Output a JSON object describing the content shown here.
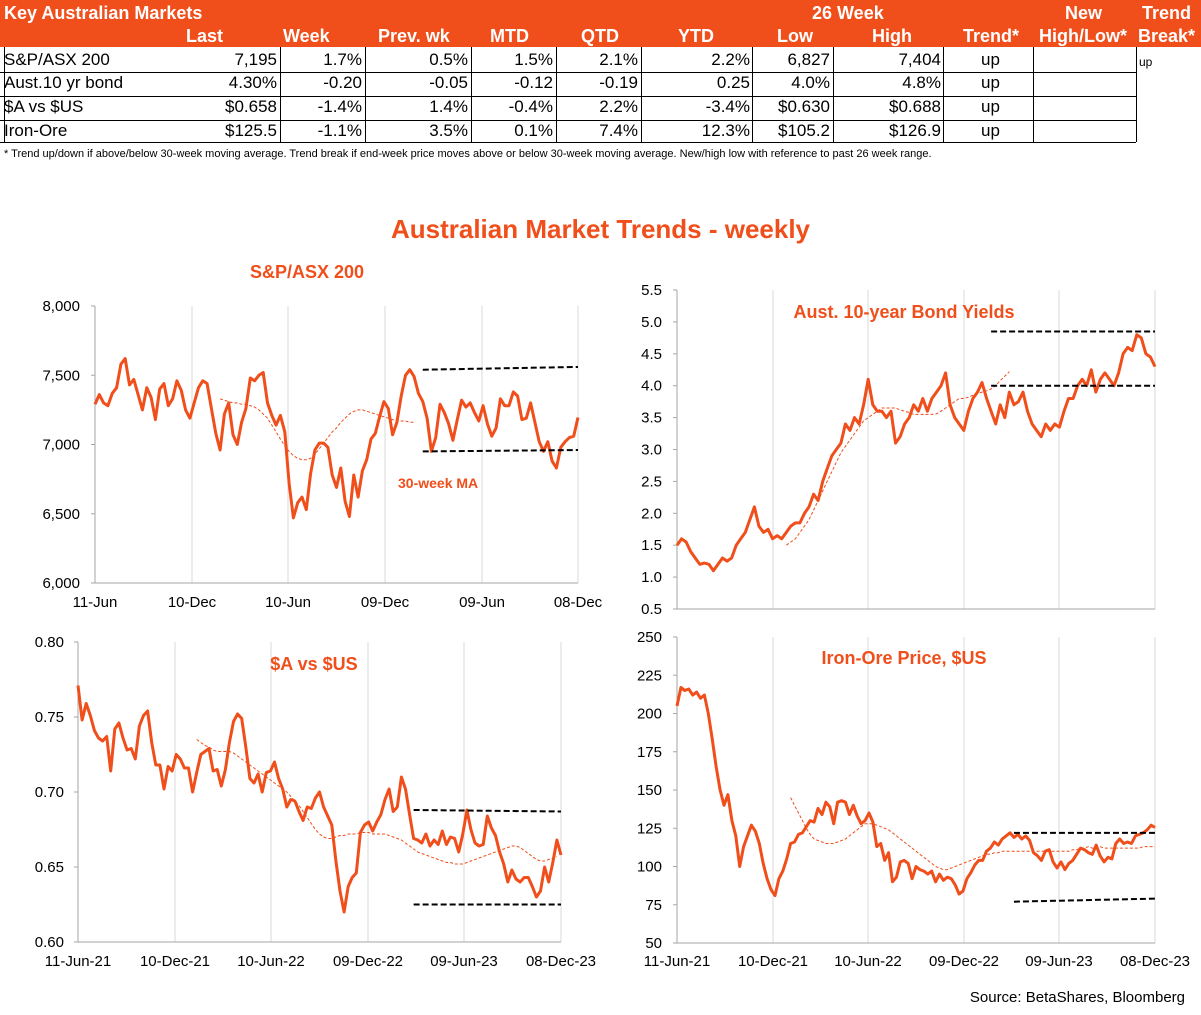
{
  "table": {
    "title": "Key Australian Markets",
    "headers": {
      "last": "Last",
      "week": "Week",
      "prev": "Prev. wk",
      "mtd": "MTD",
      "qtd": "QTD",
      "ytd": "YTD",
      "group26": "26 Week",
      "low": "Low",
      "high": "High",
      "trend": "Trend*",
      "newhl_1": "New",
      "newhl_2": "High/Low*",
      "tb_1": "Trend",
      "tb_2": "Break*"
    },
    "rows": [
      {
        "name": "S&P/ASX 200",
        "last": "7,195",
        "week": "1.7%",
        "prev": "0.5%",
        "mtd": "1.5%",
        "qtd": "2.1%",
        "ytd": "2.2%",
        "low": "6,827",
        "high": "7,404",
        "trend": "up",
        "newhl": "",
        "tb": "up"
      },
      {
        "name": "Aust.10 yr bond",
        "last": "4.30%",
        "week": "-0.20",
        "prev": "-0.05",
        "mtd": "-0.12",
        "qtd": "-0.19",
        "ytd": "0.25",
        "low": "4.0%",
        "high": "4.8%",
        "trend": "up",
        "newhl": "",
        "tb": ""
      },
      {
        "name": "$A vs $US",
        "last": "$0.658",
        "week": "-1.4%",
        "prev": "1.4%",
        "mtd": "-0.4%",
        "qtd": "2.2%",
        "ytd": "-3.4%",
        "low": "$0.630",
        "high": "$0.688",
        "trend": "up",
        "newhl": "",
        "tb": ""
      },
      {
        "name": "Iron-Ore",
        "last": "$125.5",
        "week": "-1.1%",
        "prev": "3.5%",
        "mtd": "0.1%",
        "qtd": "7.4%",
        "ytd": "12.3%",
        "low": "$105.2",
        "high": "$126.9",
        "trend": "up",
        "newhl": "",
        "tb": ""
      }
    ],
    "footnote": "*  Trend up/down if above/below 30-week moving average. Trend break if end-week price moves above or below 30-week moving average.  New/high low with reference to past 26 week range."
  },
  "main_title": "Australian Market Trends - weekly",
  "source": "Source: BetaShares, Bloomberg",
  "colors": {
    "accent": "#F04E1A",
    "line": "#F04E1A",
    "band": "#000000",
    "grid": "#d9d9d9"
  },
  "chart_data": [
    {
      "id": "asx",
      "type": "line",
      "title": "S&P/ASX 200",
      "ylim": [
        6000,
        8000
      ],
      "yticks": [
        "6,000",
        "6,500",
        "7,000",
        "7,500",
        "8,000"
      ],
      "ytick_values": [
        6000,
        6500,
        7000,
        7500,
        8000
      ],
      "xticks": [
        "11-Jun",
        "10-Dec",
        "10-Jun",
        "09-Dec",
        "09-Jun",
        "08-Dec"
      ],
      "annotation": "30-week MA",
      "series": [
        {
          "style": "price",
          "values": [
            7290,
            7360,
            7300,
            7280,
            7370,
            7410,
            7580,
            7620,
            7430,
            7470,
            7360,
            7250,
            7410,
            7340,
            7180,
            7400,
            7440,
            7280,
            7330,
            7460,
            7390,
            7250,
            7190,
            7300,
            7410,
            7460,
            7440,
            7260,
            7080,
            6960,
            7220,
            7300,
            7070,
            7000,
            7160,
            7260,
            7480,
            7460,
            7500,
            7520,
            7300,
            7210,
            7140,
            7210,
            7090,
            6720,
            6470,
            6580,
            6620,
            6530,
            6790,
            6960,
            7010,
            7010,
            6980,
            6780,
            6690,
            6830,
            6590,
            6480,
            6780,
            6620,
            6810,
            6890,
            7040,
            7080,
            7200,
            7310,
            7260,
            7070,
            7160,
            7350,
            7500,
            7540,
            7490,
            7370,
            7310,
            7190,
            6950,
            7050,
            7290,
            7230,
            7150,
            7030,
            7180,
            7320,
            7270,
            7300,
            7230,
            7170,
            7280,
            7150,
            7060,
            7120,
            7330,
            7280,
            7280,
            7380,
            7350,
            7180,
            7190,
            7300,
            7160,
            7020,
            6950,
            7020,
            6880,
            6830,
            6980,
            7020,
            7050,
            7060,
            7195
          ]
        },
        {
          "style": "ma",
          "start": 29,
          "values": [
            7330,
            7320,
            7310,
            7300,
            7300,
            7290,
            7290,
            7280,
            7270,
            7250,
            7220,
            7190,
            7140,
            7090,
            7040,
            6990,
            6950,
            6920,
            6900,
            6890,
            6890,
            6900,
            6930,
            6970,
            7010,
            7050,
            7090,
            7120,
            7160,
            7190,
            7220,
            7240,
            7250,
            7250,
            7240,
            7230,
            7220,
            7210,
            7200,
            7190,
            7180,
            7170,
            7170,
            7170,
            7160,
            7160
          ]
        }
      ],
      "bands": [
        [
          7540,
          7560
        ],
        [
          6950,
          6960
        ]
      ]
    },
    {
      "id": "bond",
      "type": "line",
      "title": "Aust. 10-year Bond Yields",
      "ylim": [
        0.5,
        5.5
      ],
      "yticks": [
        "0.5",
        "1.0",
        "1.5",
        "2.0",
        "2.5",
        "3.0",
        "3.5",
        "4.0",
        "4.5",
        "5.0",
        "5.5"
      ],
      "ytick_values": [
        0.5,
        1.0,
        1.5,
        2.0,
        2.5,
        3.0,
        3.5,
        4.0,
        4.5,
        5.0,
        5.5
      ],
      "xticks": [],
      "series": [
        {
          "style": "price",
          "values": [
            1.5,
            1.6,
            1.55,
            1.4,
            1.3,
            1.2,
            1.22,
            1.2,
            1.1,
            1.2,
            1.3,
            1.25,
            1.3,
            1.5,
            1.6,
            1.7,
            1.9,
            2.1,
            1.8,
            1.7,
            1.75,
            1.6,
            1.65,
            1.6,
            1.7,
            1.8,
            1.85,
            1.85,
            2.0,
            2.1,
            2.3,
            2.2,
            2.5,
            2.7,
            2.9,
            3.0,
            3.1,
            3.4,
            3.3,
            3.5,
            3.4,
            3.7,
            4.1,
            3.7,
            3.6,
            3.6,
            3.5,
            3.6,
            3.1,
            3.2,
            3.4,
            3.5,
            3.7,
            3.6,
            3.8,
            3.6,
            3.8,
            3.9,
            4.0,
            4.2,
            3.7,
            3.5,
            3.4,
            3.3,
            3.6,
            3.8,
            3.9,
            4.05,
            3.8,
            3.6,
            3.4,
            3.7,
            3.5,
            3.9,
            3.7,
            3.75,
            3.9,
            3.6,
            3.4,
            3.3,
            3.2,
            3.4,
            3.3,
            3.4,
            3.35,
            3.6,
            3.8,
            3.8,
            4.0,
            4.1,
            4.0,
            4.25,
            3.9,
            4.1,
            4.2,
            4.1,
            4.0,
            4.2,
            4.5,
            4.6,
            4.55,
            4.8,
            4.75,
            4.5,
            4.45,
            4.3
          ]
        },
        {
          "style": "ma",
          "start": 24,
          "values": [
            1.5,
            1.55,
            1.6,
            1.7,
            1.8,
            1.9,
            2.05,
            2.2,
            2.35,
            2.5,
            2.65,
            2.8,
            2.95,
            3.05,
            3.15,
            3.25,
            3.35,
            3.45,
            3.5,
            3.55,
            3.6,
            3.65,
            3.65,
            3.65,
            3.65,
            3.62,
            3.6,
            3.58,
            3.55,
            3.55,
            3.55,
            3.55,
            3.55,
            3.56,
            3.6,
            3.65,
            3.7,
            3.75,
            3.8,
            3.8,
            3.82,
            3.85,
            3.88,
            3.9,
            3.92,
            3.95,
            4.0,
            4.08,
            4.15,
            4.22
          ]
        }
      ],
      "bands": [
        [
          4.85,
          4.85
        ],
        [
          4.0,
          4.0
        ]
      ]
    },
    {
      "id": "aud",
      "type": "line",
      "title": "$A vs $US",
      "ylim": [
        0.6,
        0.8
      ],
      "yticks": [
        "0.60",
        "0.65",
        "0.70",
        "0.75",
        "0.80"
      ],
      "ytick_values": [
        0.6,
        0.65,
        0.7,
        0.75,
        0.8
      ],
      "xticks": [
        "11-Jun-21",
        "10-Dec-21",
        "10-Jun-22",
        "09-Dec-22",
        "09-Jun-23",
        "08-Dec-23"
      ],
      "series": [
        {
          "style": "price",
          "values": [
            0.771,
            0.748,
            0.759,
            0.751,
            0.741,
            0.736,
            0.734,
            0.737,
            0.714,
            0.742,
            0.746,
            0.736,
            0.728,
            0.729,
            0.722,
            0.744,
            0.751,
            0.754,
            0.733,
            0.718,
            0.718,
            0.702,
            0.717,
            0.714,
            0.725,
            0.722,
            0.716,
            0.716,
            0.7,
            0.713,
            0.725,
            0.727,
            0.729,
            0.714,
            0.715,
            0.704,
            0.715,
            0.733,
            0.747,
            0.752,
            0.749,
            0.73,
            0.709,
            0.706,
            0.712,
            0.7,
            0.713,
            0.714,
            0.72,
            0.709,
            0.702,
            0.69,
            0.695,
            0.694,
            0.687,
            0.681,
            0.69,
            0.689,
            0.696,
            0.7,
            0.69,
            0.684,
            0.678,
            0.654,
            0.634,
            0.62,
            0.637,
            0.643,
            0.646,
            0.673,
            0.678,
            0.68,
            0.674,
            0.68,
            0.685,
            0.695,
            0.702,
            0.687,
            0.69,
            0.71,
            0.702,
            0.685,
            0.669,
            0.668,
            0.666,
            0.672,
            0.664,
            0.668,
            0.665,
            0.674,
            0.665,
            0.67,
            0.669,
            0.66,
            0.672,
            0.688,
            0.675,
            0.666,
            0.664,
            0.665,
            0.684,
            0.676,
            0.671,
            0.66,
            0.652,
            0.64,
            0.648,
            0.642,
            0.64,
            0.643,
            0.643,
            0.637,
            0.63,
            0.634,
            0.65,
            0.64,
            0.653,
            0.668,
            0.658
          ]
        },
        {
          "style": "ma",
          "start": 29,
          "values": [
            0.735,
            0.733,
            0.731,
            0.73,
            0.728,
            0.727,
            0.727,
            0.727,
            0.727,
            0.726,
            0.724,
            0.722,
            0.72,
            0.718,
            0.716,
            0.714,
            0.712,
            0.71,
            0.708,
            0.706,
            0.704,
            0.702,
            0.7,
            0.697,
            0.694,
            0.691,
            0.687,
            0.683,
            0.679,
            0.675,
            0.672,
            0.67,
            0.669,
            0.669,
            0.67,
            0.671,
            0.671,
            0.672,
            0.672,
            0.672,
            0.673,
            0.673,
            0.673,
            0.672,
            0.672,
            0.672,
            0.672,
            0.671,
            0.67,
            0.669,
            0.668,
            0.666,
            0.664,
            0.662,
            0.66,
            0.659,
            0.658,
            0.657,
            0.656,
            0.655,
            0.654,
            0.653,
            0.653,
            0.652,
            0.652,
            0.652,
            0.653,
            0.654,
            0.655,
            0.656,
            0.657,
            0.658,
            0.659,
            0.66,
            0.661,
            0.662,
            0.663,
            0.664,
            0.664,
            0.663,
            0.661,
            0.659,
            0.657,
            0.655,
            0.654,
            0.654,
            0.655,
            0.656,
            0.657
          ]
        }
      ],
      "bands": [
        [
          0.688,
          0.687
        ],
        [
          0.625,
          0.625
        ]
      ]
    },
    {
      "id": "iron",
      "type": "line",
      "title": "Iron-Ore Price, $US",
      "ylim": [
        50,
        250
      ],
      "yticks": [
        "50",
        "75",
        "100",
        "125",
        "150",
        "175",
        "200",
        "225",
        "250"
      ],
      "ytick_values": [
        50,
        75,
        100,
        125,
        150,
        175,
        200,
        225,
        250
      ],
      "xticks": [
        "11-Jun-21",
        "10-Dec-21",
        "10-Jun-22",
        "09-Dec-22",
        "09-Jun-23",
        "08-Dec-23"
      ],
      "series": [
        {
          "style": "price",
          "values": [
            205,
            217,
            215,
            216,
            212,
            214,
            210,
            212,
            200,
            183,
            165,
            150,
            140,
            147,
            130,
            120,
            100,
            113,
            120,
            127,
            123,
            115,
            102,
            92,
            85,
            81,
            92,
            97,
            105,
            115,
            116,
            121,
            122,
            126,
            130,
            129,
            138,
            134,
            142,
            139,
            128,
            142,
            143,
            142,
            134,
            140,
            133,
            128,
            130,
            135,
            129,
            113,
            115,
            104,
            109,
            90,
            93,
            103,
            104,
            102,
            92,
            100,
            98,
            97,
            95,
            97,
            90,
            95,
            91,
            93,
            92,
            88,
            82,
            84,
            92,
            96,
            101,
            104,
            104,
            110,
            112,
            116,
            114,
            118,
            120,
            122,
            119,
            121,
            118,
            120,
            117,
            109,
            107,
            104,
            110,
            111,
            103,
            99,
            103,
            98,
            102,
            104,
            108,
            112,
            111,
            109,
            108,
            114,
            107,
            103,
            106,
            105,
            115,
            118,
            115,
            116,
            115,
            120,
            121,
            122,
            124,
            127,
            125.5
          ]
        },
        {
          "style": "ma",
          "start": 29,
          "values": [
            145,
            140,
            135,
            130,
            125,
            121,
            118,
            117,
            116,
            115,
            115,
            115,
            116,
            117,
            118,
            120,
            122,
            124,
            126,
            128,
            128,
            128,
            127,
            126,
            125,
            124,
            122,
            120,
            118,
            116,
            114,
            112,
            110,
            108,
            106,
            104,
            102,
            100,
            99,
            98,
            98,
            99,
            100,
            101,
            102,
            103,
            104,
            105,
            106,
            107,
            108,
            108,
            109,
            109,
            110,
            110,
            110,
            110,
            110,
            110,
            110,
            110,
            110,
            110,
            110,
            110,
            110,
            110,
            110,
            110,
            110,
            110,
            111,
            111,
            112,
            112,
            113,
            112,
            112,
            113,
            112,
            112,
            112,
            112,
            112,
            112,
            112,
            112,
            112,
            112,
            113,
            113,
            113,
            113
          ]
        }
      ],
      "bands": [
        [
          122,
          122
        ],
        [
          77,
          79
        ]
      ]
    }
  ]
}
